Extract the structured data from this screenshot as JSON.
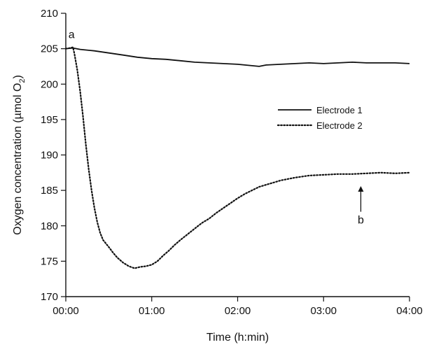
{
  "chart_data": {
    "type": "line",
    "title": "",
    "xlabel": "Time (h:min)",
    "ylabel_main": "Oxygen concentration (µmol O",
    "ylabel_sub": "2",
    "ylabel_close": ")",
    "xlim": [
      0,
      240
    ],
    "ylim": [
      170,
      210
    ],
    "x_ticks": [
      {
        "value": 0,
        "label": "00:00"
      },
      {
        "value": 60,
        "label": "01:00"
      },
      {
        "value": 120,
        "label": "02:00"
      },
      {
        "value": 180,
        "label": "03:00"
      },
      {
        "value": 240,
        "label": "04:00"
      }
    ],
    "y_ticks": [
      170,
      175,
      180,
      185,
      190,
      195,
      200,
      205,
      210
    ],
    "grid": false,
    "legend_position": "upper-right",
    "series": [
      {
        "name": "Electrode 1",
        "style": "solid",
        "color": "#111111",
        "x": [
          0,
          5,
          10,
          20,
          30,
          40,
          50,
          60,
          70,
          80,
          90,
          100,
          110,
          120,
          130,
          135,
          140,
          150,
          160,
          170,
          180,
          190,
          200,
          210,
          220,
          230,
          240
        ],
        "y": [
          205.0,
          205.1,
          204.9,
          204.7,
          204.4,
          204.1,
          203.8,
          203.6,
          203.5,
          203.3,
          203.1,
          203.0,
          202.9,
          202.8,
          202.6,
          202.5,
          202.7,
          202.8,
          202.9,
          203.0,
          202.9,
          203.0,
          203.1,
          203.0,
          203.0,
          203.0,
          202.9
        ]
      },
      {
        "name": "Electrode 2",
        "style": "dotted",
        "color": "#111111",
        "x": [
          0,
          3,
          5,
          6,
          8,
          10,
          12,
          14,
          16,
          18,
          20,
          22,
          24,
          26,
          28,
          30,
          33,
          36,
          40,
          44,
          48,
          52,
          56,
          60,
          64,
          68,
          72,
          76,
          80,
          85,
          90,
          95,
          100,
          105,
          110,
          115,
          120,
          125,
          130,
          135,
          140,
          145,
          150,
          160,
          170,
          180,
          190,
          200,
          210,
          220,
          230,
          240
        ],
        "y": [
          205.0,
          205.1,
          205.2,
          204.3,
          202.0,
          199.0,
          195.5,
          191.5,
          188.0,
          185.0,
          182.5,
          180.5,
          179.0,
          178.0,
          177.5,
          177.0,
          176.2,
          175.5,
          174.8,
          174.3,
          174.0,
          174.2,
          174.3,
          174.5,
          175.0,
          175.8,
          176.5,
          177.3,
          178.0,
          178.8,
          179.6,
          180.4,
          181.0,
          181.8,
          182.5,
          183.2,
          183.9,
          184.5,
          185.0,
          185.5,
          185.8,
          186.1,
          186.4,
          186.8,
          187.1,
          187.2,
          187.3,
          187.3,
          187.4,
          187.5,
          187.4,
          187.5
        ]
      }
    ],
    "annotations": [
      {
        "text": "a",
        "x": 4,
        "y": 207.0
      },
      {
        "text": "b",
        "x": 206,
        "y": 180.8,
        "arrow_to_y": 185.6
      }
    ]
  }
}
